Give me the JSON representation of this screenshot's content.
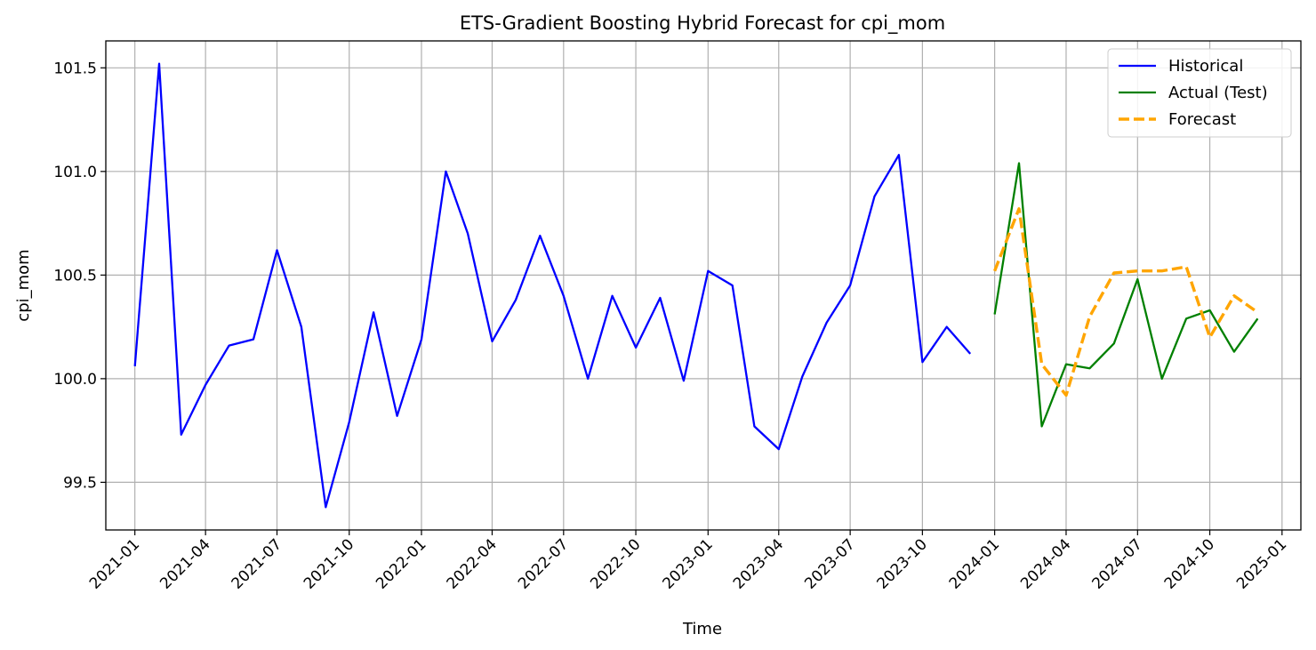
{
  "chart_data": {
    "type": "line",
    "title": "ETS-Gradient Boosting Hybrid Forecast for cpi_mom",
    "xlabel": "Time",
    "ylabel": "cpi_mom",
    "ylim": [
      99.27,
      101.63
    ],
    "xlim": [
      "2020-11-25",
      "2025-01-25"
    ],
    "y_ticks": [
      "99.5",
      "100.0",
      "100.5",
      "101.0",
      "101.5"
    ],
    "x_ticks": [
      "2021-01",
      "2021-04",
      "2021-07",
      "2021-10",
      "2022-01",
      "2022-04",
      "2022-07",
      "2022-10",
      "2023-01",
      "2023-04",
      "2023-07",
      "2023-10",
      "2024-01",
      "2024-04",
      "2024-07",
      "2024-10",
      "2025-01"
    ],
    "grid": true,
    "legend_position": "top-right",
    "series": [
      {
        "name": "Historical",
        "color": "#0000ff",
        "style": "solid",
        "x": [
          "2021-01",
          "2021-02",
          "2021-03",
          "2021-04",
          "2021-05",
          "2021-06",
          "2021-07",
          "2021-08",
          "2021-09",
          "2021-10",
          "2021-11",
          "2021-12",
          "2022-01",
          "2022-02",
          "2022-03",
          "2022-04",
          "2022-05",
          "2022-06",
          "2022-07",
          "2022-08",
          "2022-09",
          "2022-10",
          "2022-11",
          "2022-12",
          "2023-01",
          "2023-02",
          "2023-03",
          "2023-04",
          "2023-05",
          "2023-06",
          "2023-07",
          "2023-08",
          "2023-09",
          "2023-10",
          "2023-11",
          "2023-12"
        ],
        "values": [
          100.06,
          101.52,
          99.73,
          99.97,
          100.16,
          100.19,
          100.62,
          100.25,
          99.38,
          99.79,
          100.32,
          99.82,
          100.19,
          101.0,
          100.7,
          100.18,
          100.38,
          100.69,
          100.4,
          100.0,
          100.4,
          100.15,
          100.39,
          99.99,
          100.52,
          100.45,
          99.77,
          99.66,
          100.01,
          100.27,
          100.45,
          100.88,
          101.08,
          100.08,
          100.25,
          100.12
        ]
      },
      {
        "name": "Actual (Test)",
        "color": "#008000",
        "style": "solid",
        "x": [
          "2024-01",
          "2024-02",
          "2024-03",
          "2024-04",
          "2024-05",
          "2024-06",
          "2024-07",
          "2024-08",
          "2024-09",
          "2024-10",
          "2024-11",
          "2024-12"
        ],
        "values": [
          100.31,
          101.04,
          99.77,
          100.07,
          100.05,
          100.17,
          100.48,
          100.0,
          100.29,
          100.33,
          100.13,
          100.29
        ]
      },
      {
        "name": "Forecast",
        "color": "#ffa500",
        "style": "dashed",
        "x": [
          "2024-01",
          "2024-02",
          "2024-03",
          "2024-04",
          "2024-05",
          "2024-06",
          "2024-07",
          "2024-08",
          "2024-09",
          "2024-10",
          "2024-11",
          "2024-12"
        ],
        "values": [
          100.52,
          100.82,
          100.07,
          99.92,
          100.3,
          100.51,
          100.52,
          100.52,
          100.54,
          100.2,
          100.4,
          100.32
        ]
      }
    ]
  }
}
